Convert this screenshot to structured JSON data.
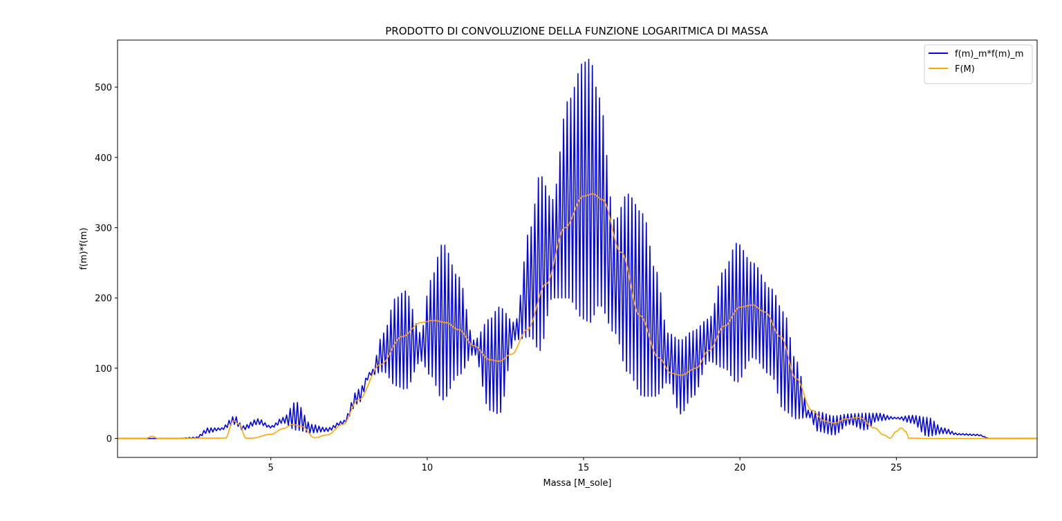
{
  "chart_data": {
    "type": "line",
    "title": "PRODOTTO DI CONVOLUZIONE DELLA FUNZIONE LOGARITMICA DI MASSA",
    "xlabel": "Massa [M_sole]",
    "ylabel": "f(m)*f(m)",
    "xlim": [
      0.1,
      29.5
    ],
    "ylim": [
      -27,
      567
    ],
    "x_ticks": [
      5,
      10,
      15,
      20,
      25
    ],
    "y_ticks": [
      0,
      100,
      200,
      300,
      400,
      500
    ],
    "grid": false,
    "legend_position": "top-right",
    "series": [
      {
        "name": "f(m)_m*f(m)_m",
        "color": "#0000ff",
        "render": "envelope",
        "x": [
          0.1,
          1.0,
          2.0,
          2.6,
          3.0,
          3.4,
          3.85,
          4.1,
          4.6,
          5.0,
          5.4,
          5.8,
          6.3,
          6.8,
          7.3,
          7.8,
          8.2,
          8.6,
          9.0,
          9.3,
          9.8,
          10.1,
          10.5,
          11.0,
          11.5,
          12.0,
          12.3,
          12.8,
          13.3,
          13.6,
          14.0,
          14.5,
          15.0,
          15.2,
          15.5,
          16.0,
          16.4,
          16.9,
          17.3,
          17.7,
          18.1,
          18.5,
          19.0,
          19.5,
          19.9,
          20.4,
          21.0,
          21.4,
          21.8,
          22.2,
          22.5,
          23.0,
          23.5,
          24.0,
          24.4,
          25.0,
          25.5,
          26.0,
          26.5,
          27.0,
          27.6,
          28.0,
          29.5
        ],
        "upper": [
          0,
          0,
          0,
          2,
          15,
          15,
          32,
          18,
          28,
          18,
          30,
          52,
          20,
          15,
          25,
          70,
          95,
          150,
          200,
          210,
          150,
          225,
          277,
          230,
          140,
          170,
          187,
          165,
          300,
          375,
          340,
          480,
          535,
          540,
          485,
          310,
          348,
          320,
          240,
          150,
          140,
          153,
          170,
          240,
          278,
          250,
          213,
          180,
          110,
          40,
          38,
          32,
          35,
          36,
          36,
          30,
          33,
          30,
          15,
          7,
          6,
          0,
          0
        ],
        "lower": [
          0,
          0,
          0,
          0,
          8,
          12,
          20,
          12,
          20,
          15,
          22,
          12,
          8,
          10,
          20,
          50,
          90,
          95,
          75,
          70,
          110,
          90,
          55,
          90,
          120,
          40,
          35,
          140,
          145,
          125,
          200,
          200,
          170,
          165,
          190,
          150,
          95,
          60,
          60,
          80,
          35,
          60,
          110,
          100,
          80,
          115,
          90,
          40,
          28,
          30,
          10,
          5,
          20,
          12,
          25,
          28,
          22,
          3,
          7,
          5,
          4,
          0,
          0
        ]
      },
      {
        "name": "F(M)",
        "color": "#ffa500",
        "render": "line",
        "x": [
          0.1,
          1.0,
          1.2,
          1.4,
          2.0,
          3.0,
          3.45,
          3.55,
          3.8,
          4.0,
          4.2,
          4.4,
          5.0,
          5.4,
          5.7,
          6.0,
          6.4,
          6.8,
          7.3,
          7.8,
          8.5,
          9.2,
          9.8,
          10.2,
          10.6,
          11.0,
          11.5,
          12.0,
          12.3,
          12.7,
          13.2,
          13.8,
          14.4,
          15.0,
          15.3,
          15.6,
          16.2,
          16.8,
          17.4,
          17.8,
          18.1,
          18.6,
          19.0,
          19.5,
          20.0,
          20.4,
          20.8,
          21.3,
          21.8,
          22.3,
          22.7,
          23.0,
          23.4,
          23.8,
          24.3,
          24.6,
          24.8,
          25.0,
          25.15,
          25.3,
          25.4,
          26.0,
          29.5
        ],
        "y": [
          0,
          0,
          3,
          0,
          0,
          0.5,
          0.5,
          0.5,
          25,
          20,
          0.5,
          0.5,
          6,
          14,
          20,
          17,
          1,
          5,
          20,
          55,
          105,
          145,
          165,
          168,
          165,
          155,
          132,
          112,
          110,
          120,
          155,
          220,
          300,
          345,
          348,
          340,
          265,
          175,
          115,
          93,
          90,
          100,
          125,
          160,
          187,
          190,
          180,
          145,
          85,
          40,
          25,
          22,
          28,
          30,
          15,
          5,
          0.5,
          10,
          15,
          10,
          0.5,
          0,
          0
        ]
      }
    ]
  }
}
